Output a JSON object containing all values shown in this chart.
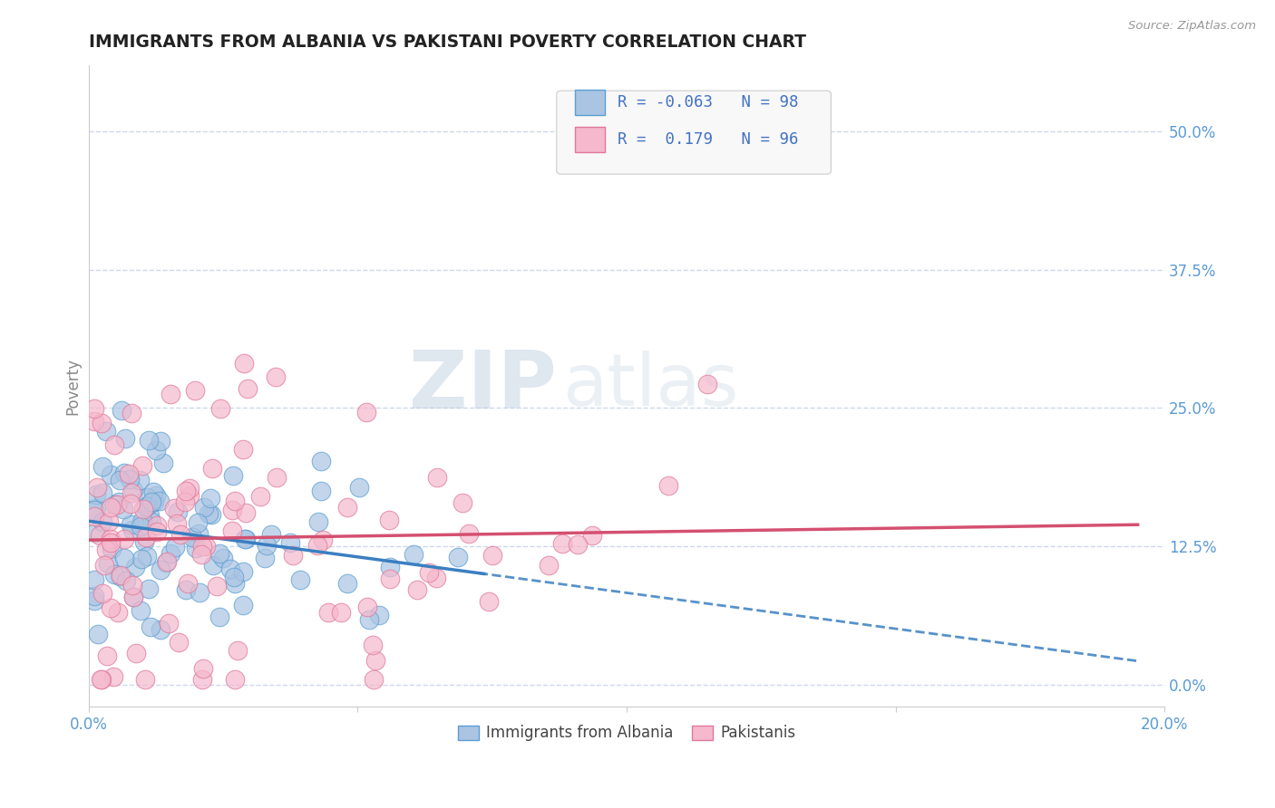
{
  "title": "IMMIGRANTS FROM ALBANIA VS PAKISTANI POVERTY CORRELATION CHART",
  "source": "Source: ZipAtlas.com",
  "xlabel": "",
  "ylabel": "Poverty",
  "xlim": [
    0.0,
    0.2
  ],
  "ylim": [
    -0.02,
    0.56
  ],
  "yticks_right": [
    0.0,
    0.125,
    0.25,
    0.375,
    0.5
  ],
  "ytick_right_labels": [
    "0.0%",
    "12.5%",
    "25.0%",
    "37.5%",
    "50.0%"
  ],
  "albania_color": "#aac4e2",
  "albania_edge": "#5a9fd4",
  "pakistan_color": "#f5b8cc",
  "pakistan_edge": "#e07898",
  "trend_albania_color": "#3a7fc1",
  "trend_pakistan_color": "#d45070",
  "background_color": "#ffffff",
  "grid_color": "#c8d4e8",
  "title_color": "#222222",
  "right_label_color": "#5b9bd5",
  "axis_label_color": "#888888",
  "legend_text_color": "#4472c4",
  "watermark_zip_color": "#b8c8dc",
  "watermark_atlas_color": "#c8d8e8"
}
